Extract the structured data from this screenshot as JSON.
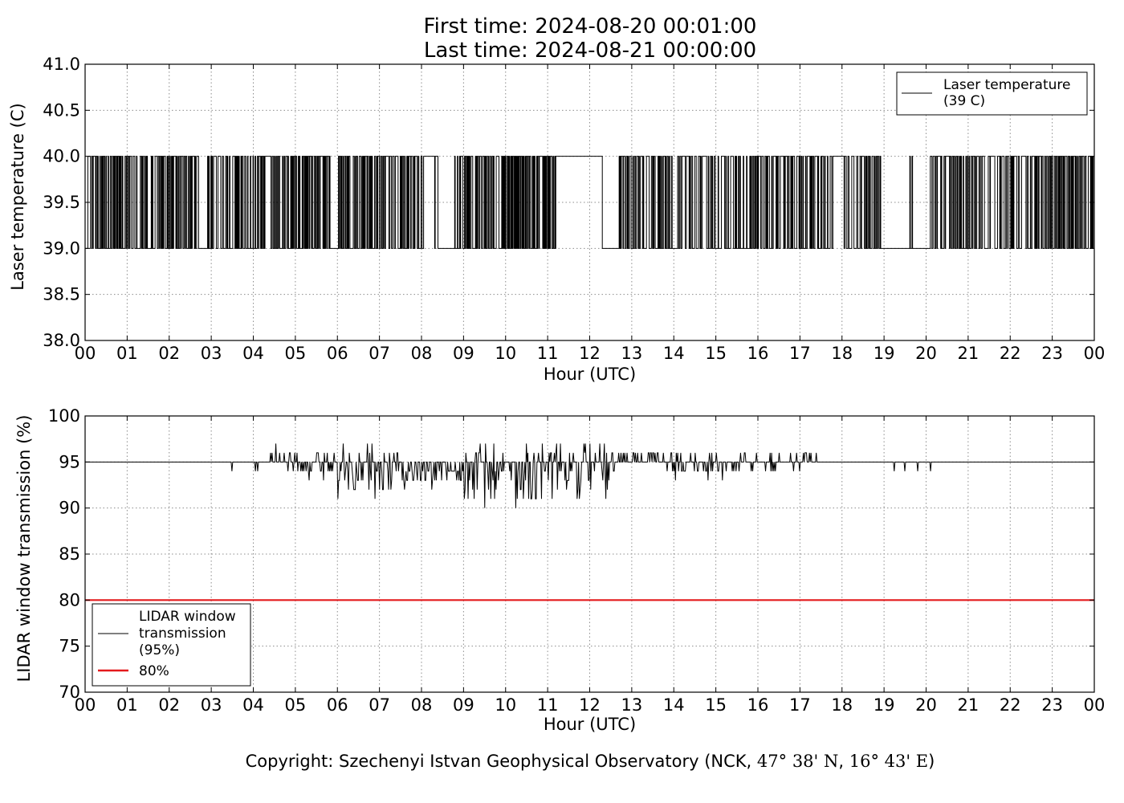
{
  "title": {
    "line1": "First time: 2024-08-20 00:01:00",
    "line2": "Last time: 2024-08-21 00:00:00"
  },
  "copyright": {
    "prefix": "Copyright: Szechenyi Istvan Geophysical Observatory (NCK, ",
    "lat": "47° 38' N",
    "sep": ", ",
    "lon": "16° 43' E",
    "suffix": ")"
  },
  "colors": {
    "series": "#000000",
    "threshold": "#e41a1c",
    "grid": "#8c8c8c"
  },
  "chart_data": [
    {
      "type": "line",
      "ylabel": "Laser temperature (C)",
      "xlabel": "Hour (UTC)",
      "xlim": [
        0,
        24
      ],
      "ylim": [
        38.0,
        41.0
      ],
      "x_ticks": [
        "00",
        "01",
        "02",
        "03",
        "04",
        "05",
        "06",
        "07",
        "08",
        "09",
        "10",
        "11",
        "12",
        "13",
        "14",
        "15",
        "16",
        "17",
        "18",
        "19",
        "20",
        "21",
        "22",
        "23",
        "00"
      ],
      "y_ticks": [
        "38.0",
        "38.5",
        "39.0",
        "39.5",
        "40.0",
        "40.5",
        "41.0"
      ],
      "grid": true,
      "legend_position": "top-right",
      "series": [
        {
          "name": "Laser temperature\n(39 C)",
          "color": "#000000",
          "levels": [
            39.0,
            40.0
          ],
          "segments": [
            {
              "from": 0.0,
              "to": 2.7,
              "behavior": "toggle",
              "density": 0.55
            },
            {
              "from": 2.7,
              "to": 2.9,
              "behavior": "steady",
              "value": 39.0
            },
            {
              "from": 2.9,
              "to": 5.9,
              "behavior": "toggle",
              "density": 0.55
            },
            {
              "from": 5.9,
              "to": 6.0,
              "behavior": "steady",
              "value": 39.0
            },
            {
              "from": 6.0,
              "to": 8.05,
              "behavior": "toggle",
              "density": 0.55
            },
            {
              "from": 8.05,
              "to": 8.3,
              "behavior": "steady",
              "value": 40.0
            },
            {
              "from": 8.3,
              "to": 8.4,
              "behavior": "toggle",
              "density": 0.5
            },
            {
              "from": 8.4,
              "to": 8.75,
              "behavior": "steady",
              "value": 39.0
            },
            {
              "from": 8.75,
              "to": 11.2,
              "behavior": "toggle",
              "density": 0.6
            },
            {
              "from": 11.2,
              "to": 12.3,
              "behavior": "steady",
              "value": 40.0
            },
            {
              "from": 12.3,
              "to": 12.7,
              "behavior": "steady",
              "value": 39.0
            },
            {
              "from": 12.7,
              "to": 17.8,
              "behavior": "toggle",
              "density": 0.45
            },
            {
              "from": 17.8,
              "to": 18.05,
              "behavior": "steady",
              "value": 40.0
            },
            {
              "from": 18.05,
              "to": 19.0,
              "behavior": "toggle",
              "density": 0.4
            },
            {
              "from": 19.0,
              "to": 19.6,
              "behavior": "steady",
              "value": 39.0
            },
            {
              "from": 19.6,
              "to": 19.7,
              "behavior": "toggle",
              "density": 0.3
            },
            {
              "from": 19.7,
              "to": 20.1,
              "behavior": "steady",
              "value": 39.0
            },
            {
              "from": 20.1,
              "to": 24.0,
              "behavior": "toggle",
              "density": 0.45
            }
          ]
        }
      ]
    },
    {
      "type": "line",
      "ylabel": "LIDAR window transmission (%)",
      "xlabel": "Hour (UTC)",
      "xlim": [
        0,
        24
      ],
      "ylim": [
        70,
        100
      ],
      "x_ticks": [
        "00",
        "01",
        "02",
        "03",
        "04",
        "05",
        "06",
        "07",
        "08",
        "09",
        "10",
        "11",
        "12",
        "13",
        "14",
        "15",
        "16",
        "17",
        "18",
        "19",
        "20",
        "21",
        "22",
        "23",
        "00"
      ],
      "y_ticks": [
        "70",
        "75",
        "80",
        "85",
        "90",
        "95",
        "100"
      ],
      "grid": true,
      "legend_position": "bottom-left",
      "series": [
        {
          "name": "LIDAR window\ntransmission\n(95%)",
          "color": "#000000",
          "baseline": 95,
          "dips": [
            {
              "x": 3.5,
              "y": 94
            },
            {
              "x": 4.05,
              "y": 94
            },
            {
              "x": 4.1,
              "y": 94
            },
            {
              "x": 19.25,
              "y": 94
            },
            {
              "x": 19.5,
              "y": 94
            },
            {
              "x": 19.8,
              "y": 94
            },
            {
              "x": 20.1,
              "y": 94
            }
          ],
          "noisy_segments": [
            {
              "from": 4.3,
              "to": 5.0,
              "min": 94,
              "max": 97
            },
            {
              "from": 5.0,
              "to": 6.0,
              "min": 93,
              "max": 96
            },
            {
              "from": 6.0,
              "to": 7.5,
              "min": 91,
              "max": 97
            },
            {
              "from": 7.5,
              "to": 9.0,
              "min": 92,
              "max": 95
            },
            {
              "from": 9.0,
              "to": 11.0,
              "min": 90,
              "max": 97
            },
            {
              "from": 11.0,
              "to": 12.5,
              "min": 91,
              "max": 97
            },
            {
              "from": 12.5,
              "to": 14.0,
              "min": 94,
              "max": 96
            },
            {
              "from": 14.0,
              "to": 16.0,
              "min": 93,
              "max": 96
            },
            {
              "from": 16.0,
              "to": 17.5,
              "min": 94,
              "max": 96
            }
          ],
          "notable_minima": [
            {
              "x": 6.9,
              "y": 91
            },
            {
              "x": 9.5,
              "y": 90
            },
            {
              "x": 10.25,
              "y": 90
            },
            {
              "x": 10.6,
              "y": 91
            },
            {
              "x": 11.7,
              "y": 91
            }
          ]
        },
        {
          "name": "80%",
          "color": "#e41a1c",
          "constant": 80
        }
      ]
    }
  ]
}
